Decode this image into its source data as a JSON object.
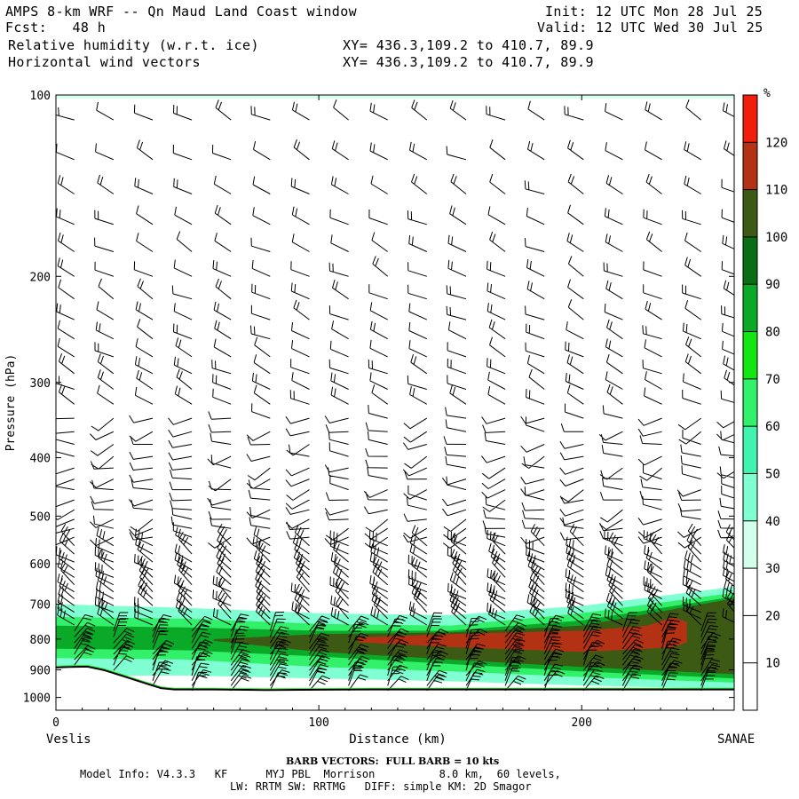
{
  "header": {
    "title": "AMPS 8-km WRF -- Qn Maud Land Coast window",
    "init": "Init: 12 UTC Mon 28 Jul 25",
    "fcst": "Fcst:   48 h",
    "valid": "Valid: 12 UTC Wed 30 Jul 25",
    "field1": "Relative humidity (w.r.t. ice)",
    "field1_xy": "XY= 436.3,109.2 to 410.7, 89.9",
    "field2": "Horizontal wind vectors",
    "field2_xy": "XY= 436.3,109.2 to 410.7, 89.9"
  },
  "chart_data": {
    "type": "heatmap",
    "ylabel": "Pressure (hPa)",
    "xlabel": "Distance (km)",
    "x_ticks": [
      0,
      100,
      200
    ],
    "y_ticks": [
      100,
      200,
      300,
      400,
      500,
      600,
      700,
      800,
      900,
      1000
    ],
    "xlim": [
      0,
      258
    ],
    "ylim": [
      1050,
      100
    ],
    "y_scale": "log",
    "left_endpoint": "Veslis",
    "right_endpoint": "SANAE",
    "colorbar": {
      "unit": "%",
      "labels": [
        10,
        20,
        30,
        40,
        50,
        60,
        70,
        80,
        90,
        100,
        110,
        120
      ],
      "colors": [
        "#ffffff",
        "#ffffff",
        "#ffffff",
        "#d3ffed",
        "#80ffd2",
        "#40f4b0",
        "#32f06a",
        "#14e614",
        "#0aaa28",
        "#0a6e14",
        "#3c5a14",
        "#b43214",
        "#f01e0a"
      ]
    },
    "rh_layers": [
      {
        "label": "40-50",
        "color": "#80ffd2",
        "x": [
          0,
          50,
          100,
          150,
          200,
          258
        ],
        "p_top": [
          700,
          710,
          725,
          730,
          705,
          655
        ],
        "p_bot": [
          920,
          920,
          930,
          940,
          955,
          968
        ]
      },
      {
        "label": "60-70",
        "color": "#32f06a",
        "x": [
          0,
          50,
          100,
          150,
          200,
          258
        ],
        "p_top": [
          735,
          740,
          755,
          760,
          725,
          670
        ],
        "p_bot": [
          860,
          865,
          890,
          905,
          925,
          945
        ]
      },
      {
        "label": "80-90",
        "color": "#0aaa28",
        "x": [
          0,
          50,
          100,
          150,
          200,
          258
        ],
        "p_top": [
          760,
          765,
          775,
          775,
          745,
          680
        ],
        "p_bot": [
          830,
          835,
          855,
          880,
          905,
          930
        ]
      },
      {
        "label": "100-110",
        "color": "#3c5a14",
        "x": [
          60,
          100,
          150,
          200,
          258
        ],
        "p_top": [
          800,
          785,
          780,
          760,
          685
        ],
        "p_bot": [
          805,
          840,
          865,
          890,
          915
        ]
      },
      {
        "label": "110-120",
        "color": "#b43214",
        "x": [
          115,
          150,
          200,
          225,
          235,
          240
        ],
        "p_top": [
          795,
          785,
          775,
          760,
          735,
          750
        ],
        "p_bot": [
          810,
          825,
          840,
          830,
          825,
          810
        ]
      }
    ],
    "terrain": {
      "x": [
        0,
        5,
        12,
        18,
        25,
        30,
        35,
        40,
        45,
        60,
        80,
        100,
        120,
        150,
        200,
        258
      ],
      "p": [
        892,
        890,
        889,
        900,
        920,
        935,
        950,
        965,
        970,
        970,
        972,
        971,
        970,
        970,
        970,
        970
      ]
    },
    "barb_note": "BARB VECTORS:  FULL BARB = 10 kts"
  },
  "model_info": {
    "line1": "Model Info: V4.3.3   KF      MYJ PBL  Morrison          8.0 km,  60 levels,",
    "line2": "LW: RRTM SW: RRTMG   DIFF: simple KM: 2D Smagor"
  }
}
